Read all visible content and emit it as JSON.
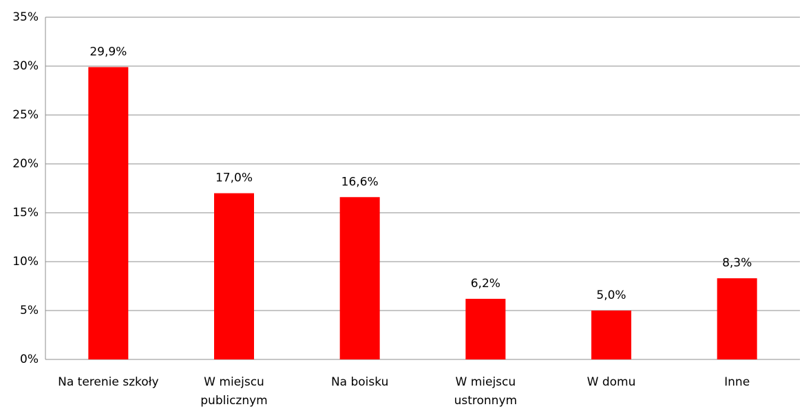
{
  "chart_data": {
    "type": "bar",
    "categories": [
      "Na terenie szkoły",
      "W miejscu publicznym",
      "Na boisku",
      "W miejscu ustronnym",
      "W domu",
      "Inne"
    ],
    "values": [
      29.9,
      17.0,
      16.6,
      6.2,
      5.0,
      8.3
    ],
    "value_labels": [
      "29,9%",
      "17,0%",
      "16,6%",
      "6,2%",
      "5,0%",
      "8,3%"
    ],
    "color": "#ff0000",
    "ylim": [
      0,
      35
    ],
    "yticks": [
      {
        "value": 0,
        "label": "0%"
      },
      {
        "value": 5,
        "label": "5%"
      },
      {
        "value": 10,
        "label": "10%"
      },
      {
        "value": 15,
        "label": "15%"
      },
      {
        "value": 20,
        "label": "20%"
      },
      {
        "value": 25,
        "label": "25%"
      },
      {
        "value": 30,
        "label": "30%"
      },
      {
        "value": 35,
        "label": "35%"
      }
    ],
    "grid": true
  }
}
